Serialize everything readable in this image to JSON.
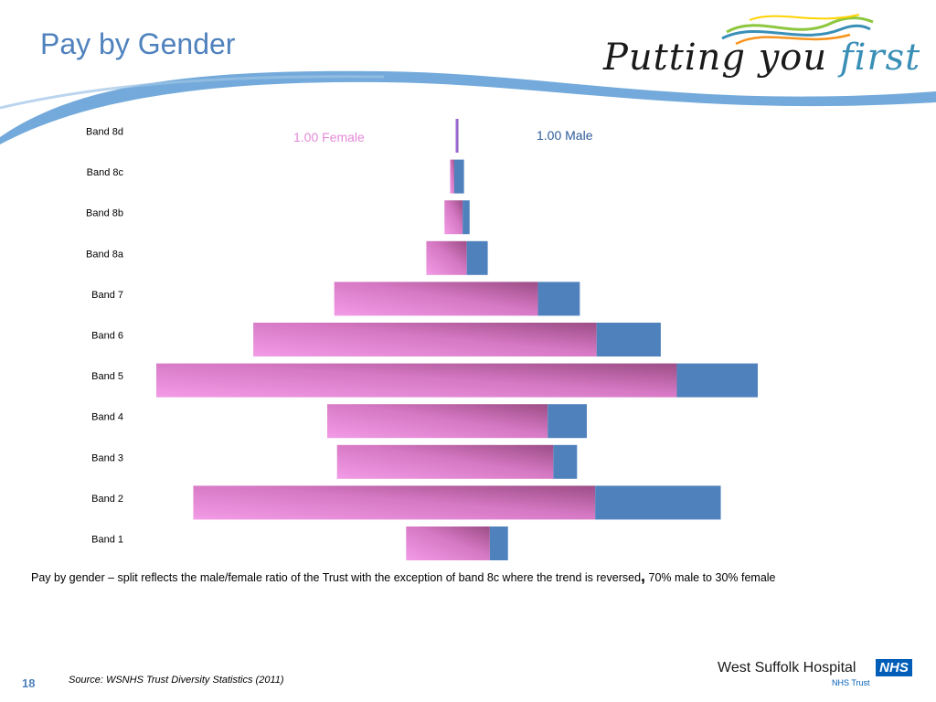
{
  "slide": {
    "title": "Pay by Gender",
    "logo_text_main": "Putting you ",
    "logo_text_accent": "first",
    "caption_main": "Pay by gender – split reflects the male/female ratio of the Trust with the exception of band 8c where the trend is reversed",
    "caption_comma": ",",
    "caption_tail": "70% male to 30% female",
    "source": "Source:  WSNHS Trust Diversity Statistics (2011)",
    "page_number": "18",
    "hospital_name": "West Suffolk Hospital",
    "nhs_badge": "NHS",
    "nhs_trust": "NHS Trust"
  },
  "colors": {
    "female": "#e48ad8",
    "male": "#4f81bd",
    "title": "#4f81bd"
  },
  "chart_data": {
    "type": "bar",
    "orientation": "horizontal",
    "stacked": true,
    "categories": [
      "Band 8d",
      "Band 8c",
      "Band 8b",
      "Band 8a",
      "Band 7",
      "Band 6",
      "Band 5",
      "Band 4",
      "Band 3",
      "Band 2",
      "Band 1"
    ],
    "series": [
      {
        "name": "Female",
        "values": [
          1,
          3,
          13,
          29,
          146,
          246,
          373,
          158,
          155,
          288,
          60
        ]
      },
      {
        "name": "Male",
        "values": [
          1,
          7,
          5,
          15,
          30,
          46,
          58,
          28,
          17,
          90,
          13
        ]
      }
    ],
    "annotations": {
      "female_label": "1.00 Female",
      "male_label": "1.00 Male"
    }
  }
}
